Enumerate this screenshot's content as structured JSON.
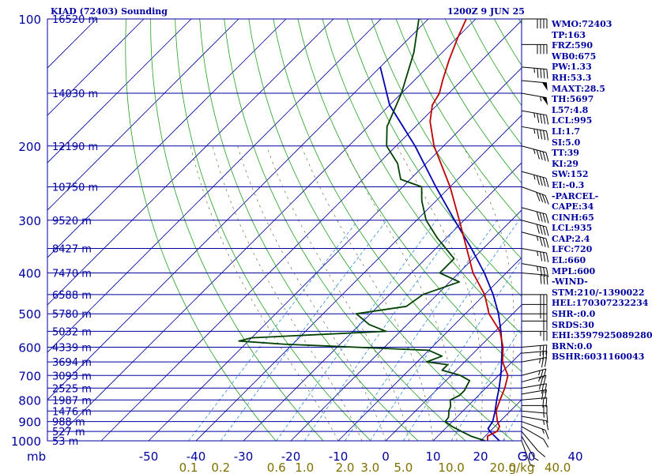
{
  "header": {
    "left_title": "KIAD (72403) Sounding",
    "right_title": "1200Z  9 JUN 25"
  },
  "side_panel": [
    "WMO:72403",
    "TP:163",
    "FRZ:590",
    "WB0:675",
    "PW:1.33",
    "RH:53.3",
    "MAXT:28.5",
    "TH:5697",
    "L57:4.8",
    "LCL:995",
    "LI:1.7",
    "SI:5.0",
    "TT:39",
    "KI:29",
    "SW:152",
    "EI:-0.3",
    "-PARCEL-",
    "CAPE:34",
    "CINH:65",
    "LCL:935",
    "CAP:2.4",
    "LFC:720",
    "EL:660",
    "MPL:600",
    "-WIND-",
    "STM:210/-1390022",
    "HEL:170307232234",
    "SHR-:0.0",
    "SRDS:30",
    "EHI:3597925089280",
    "BRN:0.0",
    "BSHR:6031160043"
  ],
  "colors": {
    "temperature": "#c00000",
    "dewpoint": "#004000",
    "parcel": "#0000b0",
    "isobar": "#0000a0",
    "isotherm": "#0000a0",
    "dry_adiabat": "#20a020",
    "moist_adiabat": "#707050",
    "mixing_ratio": "#3090e0",
    "axis_text": "#0000a0",
    "mixing_label": "#807000"
  },
  "chart_data": {
    "type": "skew-t",
    "pressure_levels": [
      100,
      200,
      300,
      400,
      500,
      600,
      700,
      800,
      900,
      1000
    ],
    "pressure_unit": "mb",
    "height_labels": [
      {
        "p": 100,
        "label": "16520 m"
      },
      {
        "p": 150,
        "label": "14030 m"
      },
      {
        "p": 200,
        "label": "12190 m"
      },
      {
        "p": 250,
        "label": "10750 m"
      },
      {
        "p": 300,
        "label": "9520 m"
      },
      {
        "p": 350,
        "label": "8427 m"
      },
      {
        "p": 400,
        "label": "7470 m"
      },
      {
        "p": 450,
        "label": "6588 m"
      },
      {
        "p": 500,
        "label": "5780 m"
      },
      {
        "p": 550,
        "label": "5032 m"
      },
      {
        "p": 600,
        "label": "4339 m"
      },
      {
        "p": 650,
        "label": "3694 m"
      },
      {
        "p": 700,
        "label": "3093 m"
      },
      {
        "p": 750,
        "label": "2525 m"
      },
      {
        "p": 800,
        "label": "1987 m"
      },
      {
        "p": 850,
        "label": "1476 m"
      },
      {
        "p": 900,
        "label": "988 m"
      },
      {
        "p": 950,
        "label": "527 m"
      },
      {
        "p": 1000,
        "label": "53 m"
      }
    ],
    "temperature_axis_labels": [
      "-50",
      "-40",
      "-30",
      "-20",
      "-10",
      "0",
      "10",
      "20",
      "30",
      "40",
      "C"
    ],
    "temperature_axis_values": [
      -50,
      -40,
      -30,
      -20,
      -10,
      0,
      10,
      20,
      30,
      40
    ],
    "mixing_ratio_labels": [
      "0.1",
      "0.2",
      "0.6",
      "1.0",
      "2.0",
      "3.0",
      "5.0",
      "10.0",
      "20.0",
      "40.0",
      "g/kg"
    ],
    "mixing_ratio_values": [
      0.1,
      0.2,
      0.6,
      1,
      2,
      3,
      5,
      10,
      20,
      40
    ],
    "temperature_profile": [
      [
        1000,
        21.5
      ],
      [
        975,
        20.5
      ],
      [
        950,
        21.5
      ],
      [
        925,
        21
      ],
      [
        900,
        19.5
      ],
      [
        850,
        17
      ],
      [
        800,
        15.5
      ],
      [
        750,
        14
      ],
      [
        700,
        12
      ],
      [
        650,
        8
      ],
      [
        600,
        5
      ],
      [
        550,
        1
      ],
      [
        500,
        -5
      ],
      [
        450,
        -10
      ],
      [
        400,
        -17
      ],
      [
        350,
        -23.5
      ],
      [
        300,
        -31
      ],
      [
        250,
        -40
      ],
      [
        200,
        -52
      ],
      [
        175,
        -58
      ],
      [
        160,
        -61
      ],
      [
        150,
        -62
      ],
      [
        140,
        -64
      ],
      [
        125,
        -67
      ],
      [
        110,
        -70
      ],
      [
        100,
        -72
      ]
    ],
    "dewpoint_profile": [
      [
        1000,
        21
      ],
      [
        975,
        17
      ],
      [
        950,
        14
      ],
      [
        925,
        11
      ],
      [
        900,
        8.5
      ],
      [
        880,
        8.3
      ],
      [
        860,
        7.5
      ],
      [
        850,
        7
      ],
      [
        830,
        6.5
      ],
      [
        800,
        5
      ],
      [
        780,
        6
      ],
      [
        760,
        6
      ],
      [
        740,
        5.5
      ],
      [
        720,
        5
      ],
      [
        700,
        2
      ],
      [
        680,
        -3
      ],
      [
        660,
        -3
      ],
      [
        650,
        -8
      ],
      [
        630,
        -6
      ],
      [
        610,
        -10
      ],
      [
        590,
        -42
      ],
      [
        580,
        -52
      ],
      [
        570,
        -50
      ],
      [
        550,
        -23
      ],
      [
        530,
        -28
      ],
      [
        500,
        -33
      ],
      [
        480,
        -24
      ],
      [
        450,
        -23
      ],
      [
        420,
        -18
      ],
      [
        400,
        -24
      ],
      [
        370,
        -24
      ],
      [
        330,
        -32
      ],
      [
        300,
        -38
      ],
      [
        270,
        -43
      ],
      [
        250,
        -46
      ],
      [
        240,
        -52
      ],
      [
        220,
        -56
      ],
      [
        200,
        -62
      ],
      [
        180,
        -66
      ],
      [
        150,
        -70
      ],
      [
        120,
        -76
      ],
      [
        100,
        -82
      ]
    ],
    "parcel_profile": [
      [
        1000,
        24
      ],
      [
        975,
        22
      ],
      [
        950,
        20
      ],
      [
        935,
        19
      ],
      [
        900,
        18.5
      ],
      [
        850,
        16.8
      ],
      [
        800,
        14.8
      ],
      [
        750,
        12.8
      ],
      [
        700,
        10.5
      ],
      [
        650,
        7.8
      ],
      [
        600,
        4.8
      ],
      [
        550,
        1.2
      ],
      [
        500,
        -3
      ],
      [
        450,
        -8.2
      ],
      [
        400,
        -14.6
      ],
      [
        350,
        -22.5
      ],
      [
        300,
        -32
      ],
      [
        250,
        -43
      ],
      [
        200,
        -56
      ],
      [
        160,
        -70
      ],
      [
        130,
        -80
      ]
    ],
    "wind_barbs": [
      {
        "p": 1000,
        "dir": 200,
        "spd": 5
      },
      {
        "p": 975,
        "dir": 210,
        "spd": 5
      },
      {
        "p": 950,
        "dir": 220,
        "spd": 10
      },
      {
        "p": 925,
        "dir": 240,
        "spd": 10
      },
      {
        "p": 900,
        "dir": 250,
        "spd": 15
      },
      {
        "p": 875,
        "dir": 260,
        "spd": 15
      },
      {
        "p": 850,
        "dir": 265,
        "spd": 15
      },
      {
        "p": 825,
        "dir": 270,
        "spd": 20
      },
      {
        "p": 800,
        "dir": 275,
        "spd": 20
      },
      {
        "p": 775,
        "dir": 280,
        "spd": 20
      },
      {
        "p": 750,
        "dir": 280,
        "spd": 25
      },
      {
        "p": 725,
        "dir": 285,
        "spd": 25
      },
      {
        "p": 700,
        "dir": 285,
        "spd": 25
      },
      {
        "p": 650,
        "dir": 280,
        "spd": 25
      },
      {
        "p": 620,
        "dir": 275,
        "spd": 25
      },
      {
        "p": 600,
        "dir": 275,
        "spd": 25
      },
      {
        "p": 550,
        "dir": 270,
        "spd": 25
      },
      {
        "p": 520,
        "dir": 270,
        "spd": 20
      },
      {
        "p": 500,
        "dir": 270,
        "spd": 25
      },
      {
        "p": 475,
        "dir": 270,
        "spd": 30
      },
      {
        "p": 450,
        "dir": 270,
        "spd": 30
      },
      {
        "p": 400,
        "dir": 265,
        "spd": 30
      },
      {
        "p": 380,
        "dir": 260,
        "spd": 35
      },
      {
        "p": 350,
        "dir": 260,
        "spd": 35
      },
      {
        "p": 320,
        "dir": 255,
        "spd": 35
      },
      {
        "p": 300,
        "dir": 255,
        "spd": 40
      },
      {
        "p": 280,
        "dir": 255,
        "spd": 40
      },
      {
        "p": 250,
        "dir": 250,
        "spd": 40
      },
      {
        "p": 230,
        "dir": 255,
        "spd": 45
      },
      {
        "p": 200,
        "dir": 255,
        "spd": 45
      },
      {
        "p": 180,
        "dir": 260,
        "spd": 45
      },
      {
        "p": 165,
        "dir": 260,
        "spd": 45
      },
      {
        "p": 150,
        "dir": 260,
        "spd": 55
      },
      {
        "p": 140,
        "dir": 265,
        "spd": 50
      },
      {
        "p": 130,
        "dir": 265,
        "spd": 45
      },
      {
        "p": 115,
        "dir": 270,
        "spd": 40
      },
      {
        "p": 100,
        "dir": 270,
        "spd": 40
      }
    ]
  }
}
